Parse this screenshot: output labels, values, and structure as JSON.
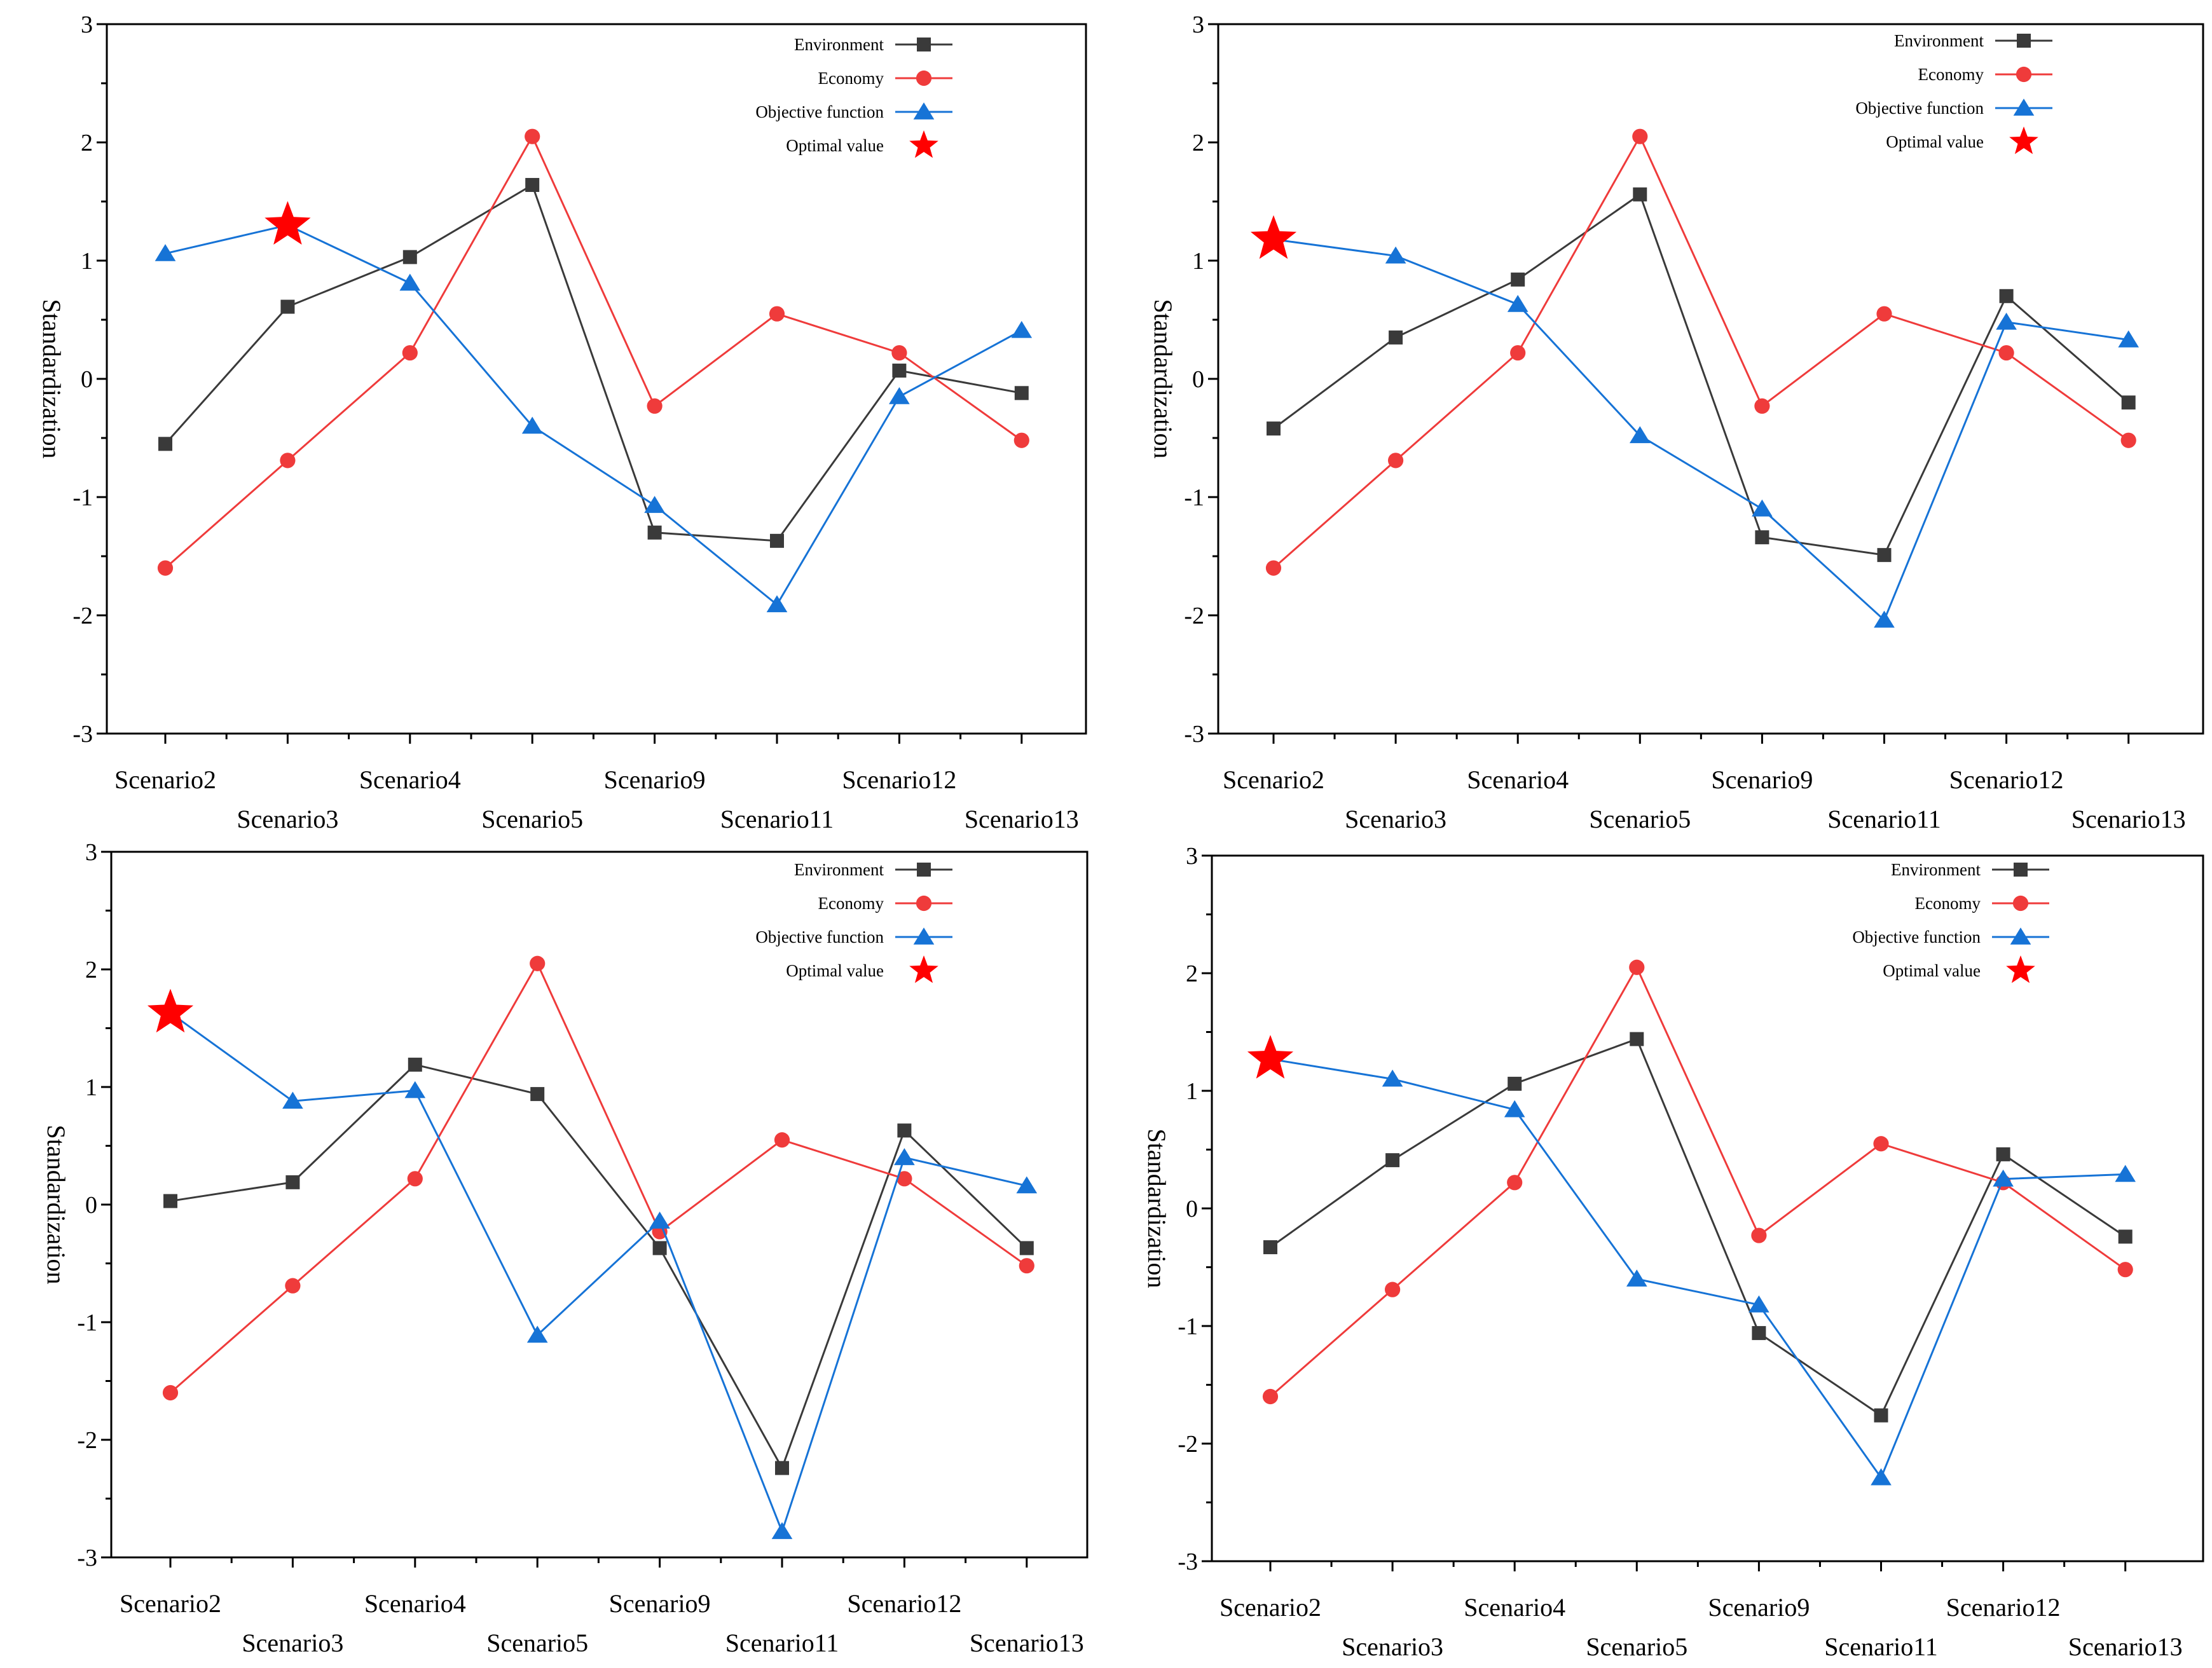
{
  "chart_data": [
    {
      "type": "line",
      "title": "",
      "xlabel": "",
      "ylabel": "Standardization",
      "ylim": [
        -3,
        3
      ],
      "yticks": [
        3,
        2,
        1,
        0,
        -1,
        -2,
        -3
      ],
      "categories": [
        "Scenario2",
        "Scenario3",
        "Scenario4",
        "Scenario5",
        "Scenario9",
        "Scenario11",
        "Scenario12",
        "Scenario13"
      ],
      "legend": {
        "position": "top-right",
        "entries": [
          "Environment",
          "Economy",
          "Objective function",
          "Optimal value"
        ]
      },
      "series": [
        {
          "name": "Environment",
          "color": "#3a3a3a",
          "marker": "square",
          "values": [
            -0.55,
            0.61,
            1.03,
            1.64,
            -1.3,
            -1.37,
            0.07,
            -0.12
          ]
        },
        {
          "name": "Economy",
          "color": "#ef3b3b",
          "marker": "circle",
          "values": [
            -1.6,
            -0.69,
            0.22,
            2.05,
            -0.23,
            0.55,
            0.22,
            -0.52
          ]
        },
        {
          "name": "Objective function",
          "color": "#1673d6",
          "marker": "triangle",
          "values": [
            1.06,
            1.3,
            0.81,
            -0.4,
            -1.07,
            -1.91,
            -0.15,
            0.41
          ]
        }
      ],
      "optimal": {
        "name": "Optimal value",
        "color": "#ff0000",
        "category": "Scenario3",
        "value": 1.3
      }
    },
    {
      "type": "line",
      "title": "",
      "xlabel": "",
      "ylabel": "Standardization",
      "ylim": [
        -3,
        3
      ],
      "yticks": [
        3,
        2,
        1,
        0,
        -1,
        -2,
        -3
      ],
      "categories": [
        "Scenario2",
        "Scenario3",
        "Scenario4",
        "Scenario5",
        "Scenario9",
        "Scenario11",
        "Scenario12",
        "Scenario13"
      ],
      "legend": {
        "position": "top-right",
        "entries": [
          "Environment",
          "Economy",
          "Objective function",
          "Optimal value"
        ]
      },
      "series": [
        {
          "name": "Environment",
          "color": "#3a3a3a",
          "marker": "square",
          "values": [
            -0.42,
            0.35,
            0.84,
            1.56,
            -1.34,
            -1.49,
            0.7,
            -0.2
          ]
        },
        {
          "name": "Economy",
          "color": "#ef3b3b",
          "marker": "circle",
          "values": [
            -1.6,
            -0.69,
            0.22,
            2.05,
            -0.23,
            0.55,
            0.22,
            -0.52
          ]
        },
        {
          "name": "Objective function",
          "color": "#1673d6",
          "marker": "triangle",
          "values": [
            1.18,
            1.04,
            0.63,
            -0.48,
            -1.1,
            -2.04,
            0.48,
            0.33
          ]
        }
      ],
      "optimal": {
        "name": "Optimal value",
        "color": "#ff0000",
        "category": "Scenario2",
        "value": 1.18
      }
    },
    {
      "type": "line",
      "title": "",
      "xlabel": "",
      "ylabel": "Standardization",
      "ylim": [
        -3,
        3
      ],
      "yticks": [
        3,
        2,
        1,
        0,
        -1,
        -2,
        -3
      ],
      "categories": [
        "Scenario2",
        "Scenario3",
        "Scenario4",
        "Scenario5",
        "Scenario9",
        "Scenario11",
        "Scenario12",
        "Scenario13"
      ],
      "legend": {
        "position": "top-right",
        "entries": [
          "Environment",
          "Economy",
          "Objective function",
          "Optimal value"
        ]
      },
      "series": [
        {
          "name": "Environment",
          "color": "#3a3a3a",
          "marker": "square",
          "values": [
            0.03,
            0.19,
            1.19,
            0.94,
            -0.37,
            -2.24,
            0.63,
            -0.37
          ]
        },
        {
          "name": "Economy",
          "color": "#ef3b3b",
          "marker": "circle",
          "values": [
            -1.6,
            -0.69,
            0.22,
            2.05,
            -0.23,
            0.55,
            0.22,
            -0.52
          ]
        },
        {
          "name": "Objective function",
          "color": "#1673d6",
          "marker": "triangle",
          "values": [
            1.63,
            0.88,
            0.97,
            -1.11,
            -0.14,
            -2.78,
            0.4,
            0.16
          ]
        }
      ],
      "optimal": {
        "name": "Optimal value",
        "color": "#ff0000",
        "category": "Scenario2",
        "value": 1.63
      }
    },
    {
      "type": "line",
      "title": "",
      "xlabel": "",
      "ylabel": "Standardization",
      "ylim": [
        -3,
        3
      ],
      "yticks": [
        3,
        2,
        1,
        0,
        -1,
        -2,
        -3
      ],
      "categories": [
        "Scenario2",
        "Scenario3",
        "Scenario4",
        "Scenario5",
        "Scenario9",
        "Scenario11",
        "Scenario12",
        "Scenario13"
      ],
      "legend": {
        "position": "top-right",
        "entries": [
          "Environment",
          "Economy",
          "Objective function",
          "Optimal value"
        ]
      },
      "series": [
        {
          "name": "Environment",
          "color": "#3a3a3a",
          "marker": "square",
          "values": [
            -0.33,
            0.41,
            1.06,
            1.44,
            -1.06,
            -1.76,
            0.46,
            -0.24
          ]
        },
        {
          "name": "Economy",
          "color": "#ef3b3b",
          "marker": "circle",
          "values": [
            -1.6,
            -0.69,
            0.22,
            2.05,
            -0.23,
            0.55,
            0.22,
            -0.52
          ]
        },
        {
          "name": "Objective function",
          "color": "#1673d6",
          "marker": "triangle",
          "values": [
            1.27,
            1.1,
            0.84,
            -0.6,
            -0.82,
            -2.29,
            0.25,
            0.29
          ]
        }
      ],
      "optimal": {
        "name": "Optimal value",
        "color": "#ff0000",
        "category": "Scenario2",
        "value": 1.27
      }
    }
  ]
}
